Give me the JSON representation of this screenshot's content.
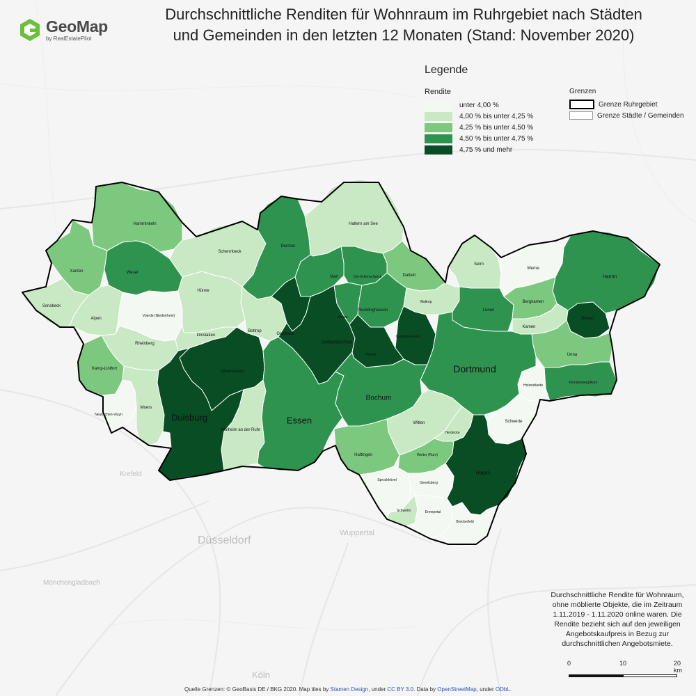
{
  "logo": {
    "name": "GeoMap",
    "sub": "by RealEstatePilot",
    "color": "#6bbf3a"
  },
  "title_line1": "Durchschnittliche Renditen für Wohnraum im Ruhrgebiet nach Städten",
  "title_line2": "und Gemeinden in den letzten 12 Monaten (Stand: November 2020)",
  "legend": {
    "heading": "Legende",
    "rendite_label": "Rendite",
    "grenzen_label": "Grenzen",
    "classes": [
      {
        "label": "unter 4,00 %",
        "color": "#f3f9f2"
      },
      {
        "label": "4,00 % bis unter 4,25 %",
        "color": "#c8e9c3"
      },
      {
        "label": "4,25 % bis unter 4,50 %",
        "color": "#7dc87f"
      },
      {
        "label": "4,50 % bis unter 4,75 %",
        "color": "#2f9350"
      },
      {
        "label": "4,75 % und mehr",
        "color": "#084d23"
      }
    ],
    "borders": [
      {
        "label": "Grenze Ruhrgebiet",
        "style": "thick"
      },
      {
        "label": "Grenze Städte / Gemeinden",
        "style": "thin"
      }
    ]
  },
  "background_labels": [
    "Krefeld",
    "Düsseldorf",
    "Wuppertal",
    "Mönchengladbach",
    "Köln"
  ],
  "municipalities": [
    {
      "name": "Hamminkeln",
      "class": 2
    },
    {
      "name": "Xanten",
      "class": 2
    },
    {
      "name": "Wesel",
      "class": 3
    },
    {
      "name": "Schermbeck",
      "class": 1
    },
    {
      "name": "Dorsten",
      "class": 3
    },
    {
      "name": "Haltern am See",
      "class": 1
    },
    {
      "name": "Marl",
      "class": 3
    },
    {
      "name": "Oer-Erkenschwick",
      "class": 3
    },
    {
      "name": "Datteln",
      "class": 2
    },
    {
      "name": "Selm",
      "class": 1
    },
    {
      "name": "Werne",
      "class": 0
    },
    {
      "name": "Hamm",
      "class": 3
    },
    {
      "name": "Sonsbeck",
      "class": 1
    },
    {
      "name": "Alpen",
      "class": 1
    },
    {
      "name": "Voerde (Niederrhein)",
      "class": 0
    },
    {
      "name": "Hünxe",
      "class": 1
    },
    {
      "name": "Dinslaken",
      "class": 1
    },
    {
      "name": "Bottrop",
      "class": 1
    },
    {
      "name": "Gladbeck",
      "class": 4
    },
    {
      "name": "Gelsenkirchen",
      "class": 4
    },
    {
      "name": "Herten",
      "class": 3
    },
    {
      "name": "Recklinghausen",
      "class": 3
    },
    {
      "name": "Waltrop",
      "class": 1
    },
    {
      "name": "Lünen",
      "class": 3
    },
    {
      "name": "Bergkamen",
      "class": 2
    },
    {
      "name": "Bönen",
      "class": 4
    },
    {
      "name": "Kamen",
      "class": 1
    },
    {
      "name": "Castrop-Rauxel",
      "class": 4
    },
    {
      "name": "Herne",
      "class": 4
    },
    {
      "name": "Rheinberg",
      "class": 1
    },
    {
      "name": "Kamp-Lintfort",
      "class": 2
    },
    {
      "name": "Oberhausen",
      "class": 4
    },
    {
      "name": "Unna",
      "class": 2
    },
    {
      "name": "Fröndenberg/Ruhr",
      "class": 3
    },
    {
      "name": "Holzwickede",
      "class": 0
    },
    {
      "name": "Dortmund",
      "class": 3
    },
    {
      "name": "Neukirchen-Vluyn",
      "class": 0
    },
    {
      "name": "Moers",
      "class": 1
    },
    {
      "name": "Duisburg",
      "class": 4
    },
    {
      "name": "Mülheim an der Ruhr",
      "class": 1
    },
    {
      "name": "Essen",
      "class": 3
    },
    {
      "name": "Bochum",
      "class": 3
    },
    {
      "name": "Schwerte",
      "class": 0
    },
    {
      "name": "Witten",
      "class": 1
    },
    {
      "name": "Herdecke",
      "class": 1
    },
    {
      "name": "Hattingen",
      "class": 2
    },
    {
      "name": "Wetter (Ruhr)",
      "class": 2
    },
    {
      "name": "Hagen",
      "class": 4
    },
    {
      "name": "Sprockhövel",
      "class": 0
    },
    {
      "name": "Gevelsberg",
      "class": 0
    },
    {
      "name": "Schwelm",
      "class": 1
    },
    {
      "name": "Ennepetal",
      "class": 0
    },
    {
      "name": "Breckerfeld",
      "class": 0
    }
  ],
  "note": "Durchschnittliche Rendite für Wohnraum, ohne möblierte Objekte, die im Zeitraum 1.11.2019 - 1.11.2020 online waren. Die Rendite bezieht sich auf den jeweiligen Angebotskaufpreis in Bezug zur durchschnittlichen Angebotsmiete.",
  "scale": {
    "labels": [
      "0",
      "10",
      "20 km"
    ]
  },
  "source": {
    "prefix": "Quelle Grenzen: © GeoBasis DE / BKG 2020. Map tiles by ",
    "link1": "Stamen Design",
    "mid1": ", under ",
    "link2": "CC BY 3.0",
    "mid2": ". Data by ",
    "link3": "OpenStreetMap",
    "mid3": ", under ",
    "link4": "ODbL",
    "suffix": "."
  }
}
